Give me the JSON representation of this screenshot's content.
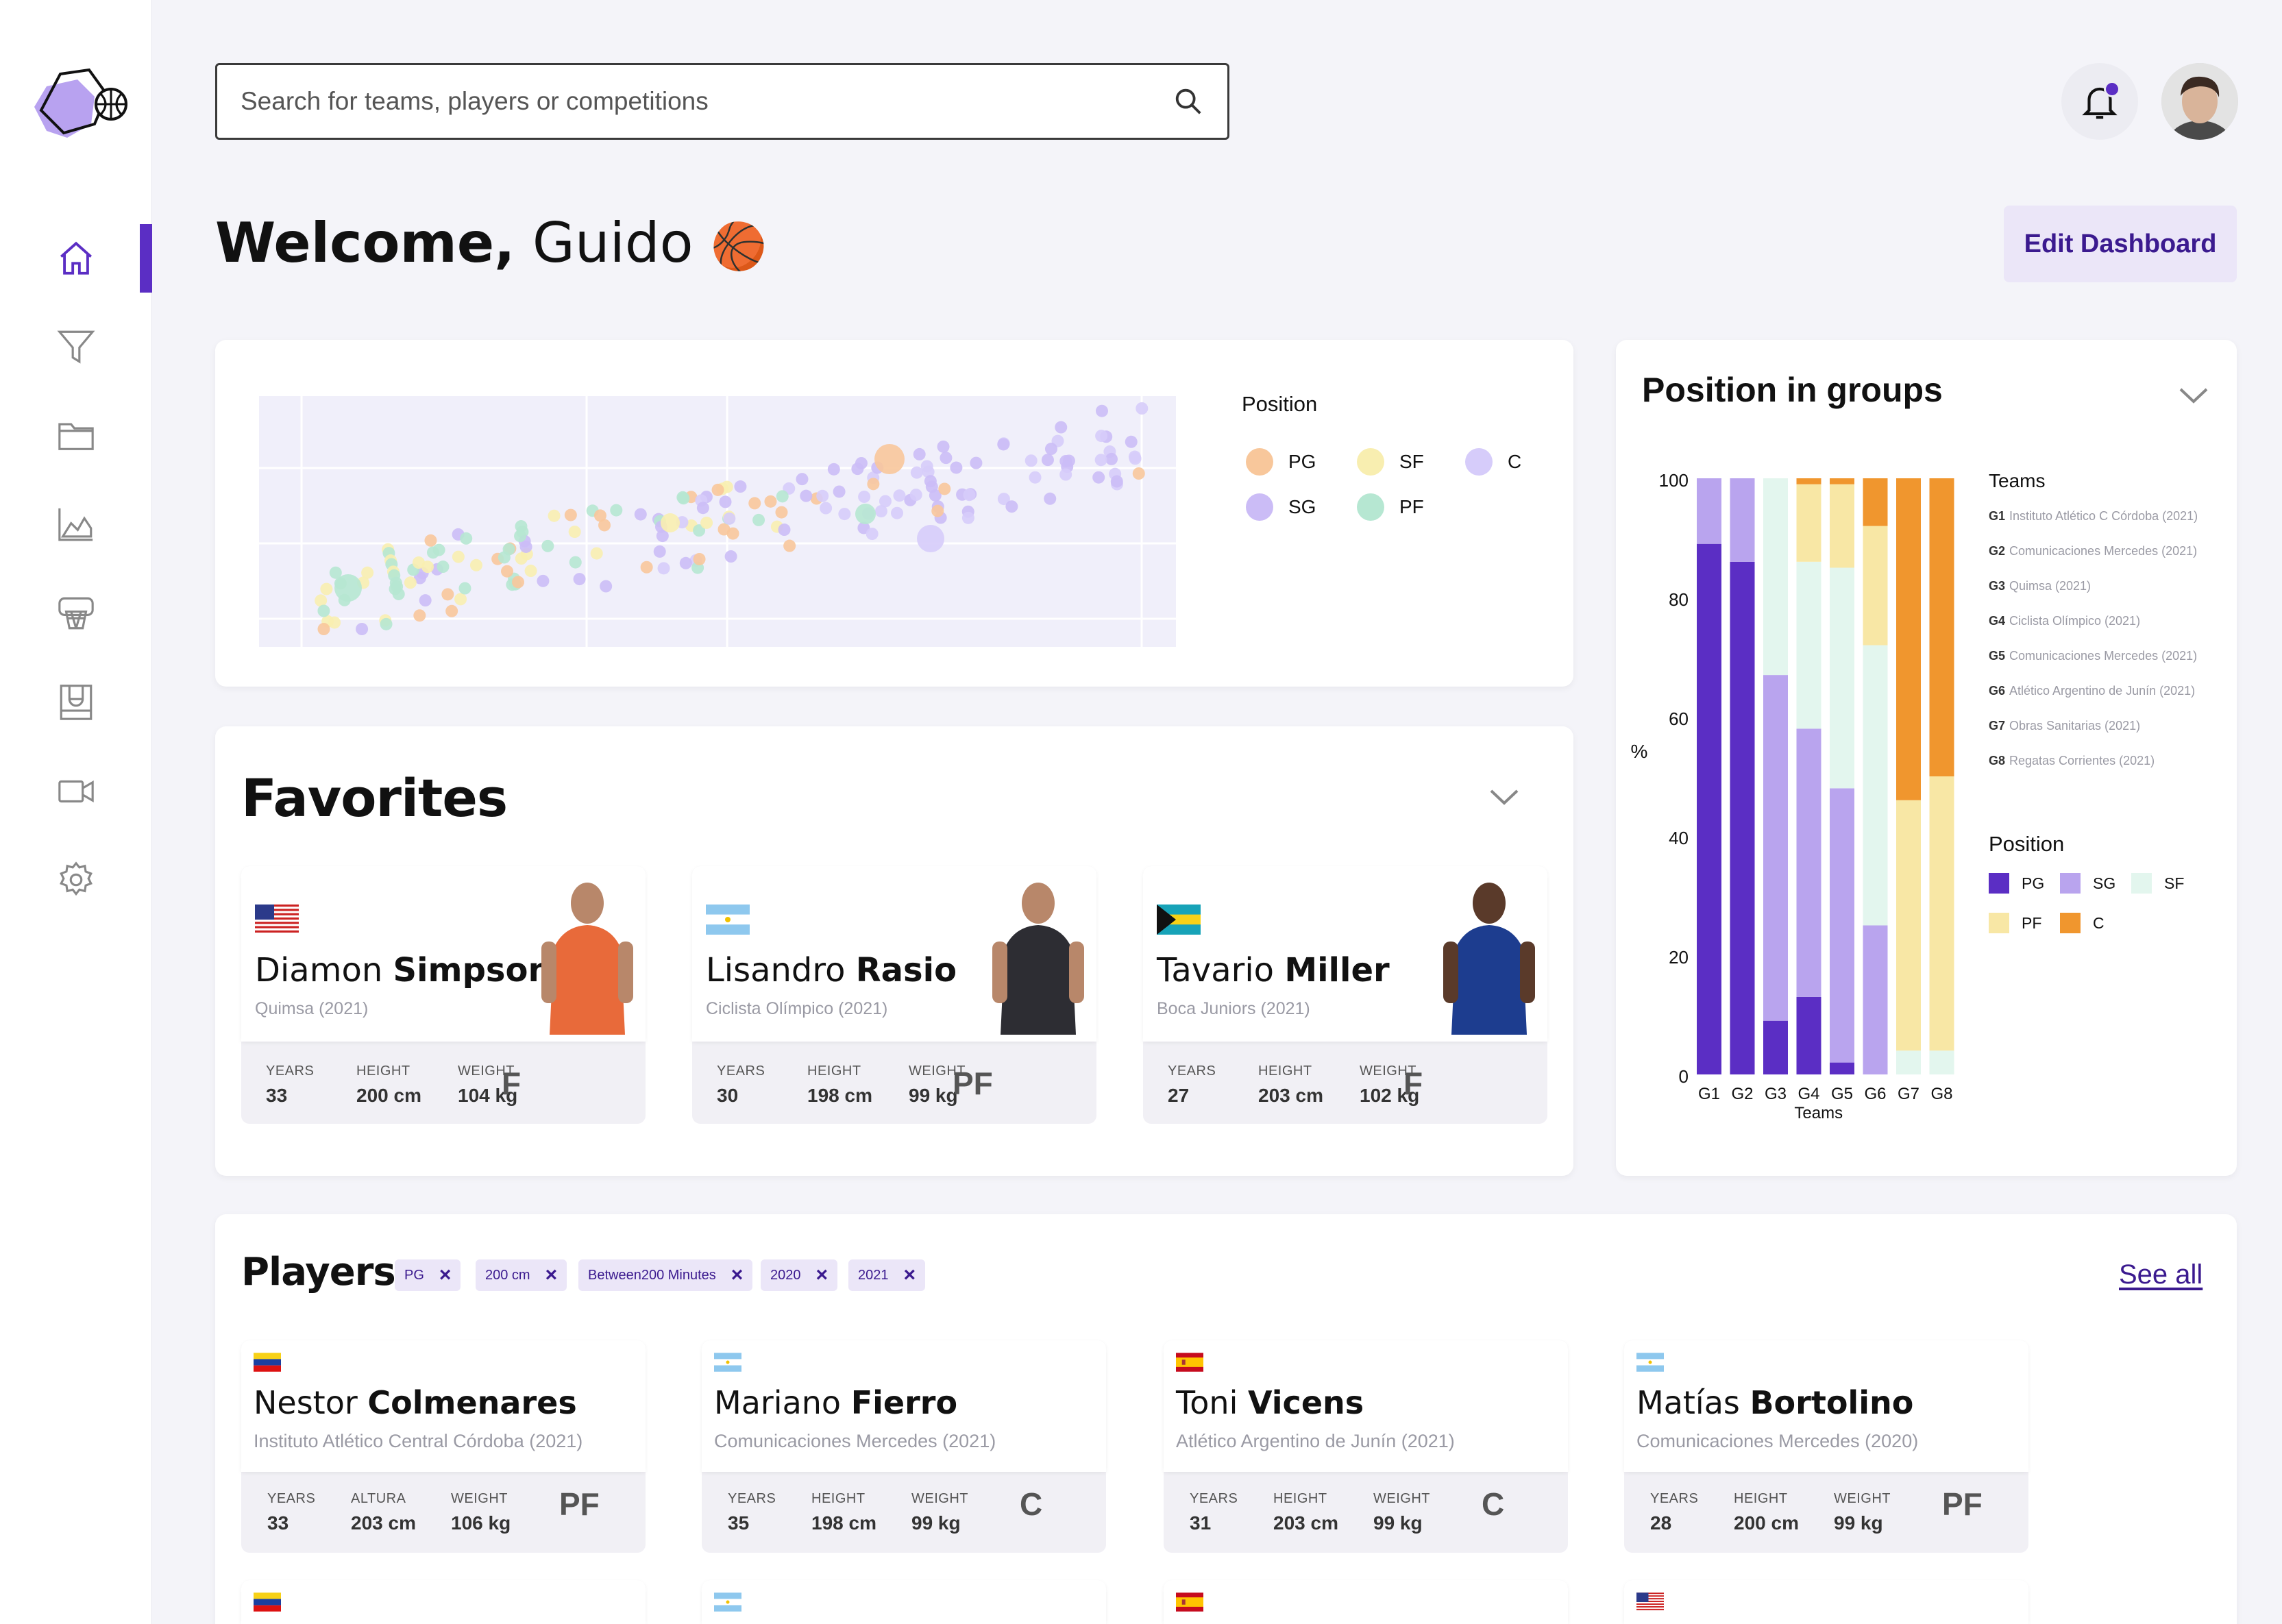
{
  "header": {
    "search_placeholder": "Search for teams, players or competitions",
    "welcome_prefix": "Welcome,",
    "user_name": "Guido",
    "welcome_emoji": "🏀",
    "edit_button": "Edit Dashboard"
  },
  "sidebar": {
    "items": [
      {
        "icon": "home-icon",
        "active": true
      },
      {
        "icon": "filter-icon",
        "active": false
      },
      {
        "icon": "folder-icon",
        "active": false
      },
      {
        "icon": "area-chart-icon",
        "active": false
      },
      {
        "icon": "basketball-hoop-icon",
        "active": false
      },
      {
        "icon": "court-icon",
        "active": false
      },
      {
        "icon": "video-camera-icon",
        "active": false
      },
      {
        "icon": "settings-gear-icon",
        "active": false
      }
    ]
  },
  "scatter": {
    "legend_title": "Position",
    "legend": [
      {
        "label": "PG",
        "color": "#f8c79b"
      },
      {
        "label": "SF",
        "color": "#f8eeb0"
      },
      {
        "label": "C",
        "color": "#d6ccfa"
      },
      {
        "label": "SG",
        "color": "#cbbcf6"
      },
      {
        "label": "PF",
        "color": "#b6e7d2"
      }
    ]
  },
  "favorites": {
    "title": "Favorites",
    "cards": [
      {
        "first": "Diamon",
        "last": "Simpson",
        "team": "Quimsa (2021)",
        "flag": "usa",
        "stats": [
          {
            "label": "YEARS",
            "value": "33"
          },
          {
            "label": "HEIGHT",
            "value": "200 cm"
          },
          {
            "label": "WEIGHT",
            "value": "104 kg"
          }
        ],
        "position": "F"
      },
      {
        "first": "Lisandro",
        "last": "Rasio",
        "team": "Ciclista Olímpico (2021)",
        "flag": "argentina",
        "stats": [
          {
            "label": "YEARS",
            "value": "30"
          },
          {
            "label": "HEIGHT",
            "value": "198 cm"
          },
          {
            "label": "WEIGHT",
            "value": "99 kg"
          }
        ],
        "position": "PF"
      },
      {
        "first": "Tavario",
        "last": "Miller",
        "team": "Boca Juniors (2021)",
        "flag": "bahamas",
        "stats": [
          {
            "label": "YEARS",
            "value": "27"
          },
          {
            "label": "HEIGHT",
            "value": "203 cm"
          },
          {
            "label": "WEIGHT",
            "value": "102 kg"
          }
        ],
        "position": "F"
      }
    ]
  },
  "players": {
    "title": "Players",
    "see_all": "See all",
    "chips": [
      "PG",
      "200 cm",
      "Between200 Minutes",
      "2020",
      "2021"
    ],
    "cards": [
      {
        "first": "Nestor",
        "last": "Colmenares",
        "team": "Instituto Atlético Central Córdoba (2021)",
        "flag": "venezuela",
        "stats": [
          {
            "label": "YEARS",
            "value": "33"
          },
          {
            "label": "ALTURA",
            "value": "203 cm"
          },
          {
            "label": "WEIGHT",
            "value": "106 kg"
          }
        ],
        "position": "PF"
      },
      {
        "first": "Mariano",
        "last": "Fierro",
        "team": "Comunicaciones Mercedes (2021)",
        "flag": "argentina",
        "stats": [
          {
            "label": "YEARS",
            "value": "35"
          },
          {
            "label": "HEIGHT",
            "value": "198 cm"
          },
          {
            "label": "WEIGHT",
            "value": "99 kg"
          }
        ],
        "position": "C"
      },
      {
        "first": "Toni",
        "last": "Vicens",
        "team": "Atlético Argentino de Junín (2021)",
        "flag": "spain",
        "stats": [
          {
            "label": "YEARS",
            "value": "31"
          },
          {
            "label": "HEIGHT",
            "value": "203 cm"
          },
          {
            "label": "WEIGHT",
            "value": "99 kg"
          }
        ],
        "position": "C"
      },
      {
        "first": "Matías",
        "last": "Bortolino",
        "team": "Comunicaciones Mercedes (2020)",
        "flag": "argentina",
        "stats": [
          {
            "label": "YEARS",
            "value": "28"
          },
          {
            "label": "HEIGHT",
            "value": "200 cm"
          },
          {
            "label": "WEIGHT",
            "value": "99 kg"
          }
        ],
        "position": "PF"
      }
    ],
    "more_row_flags": [
      "venezuela",
      "argentina",
      "spain",
      "usa"
    ]
  },
  "chart_data": {
    "type": "bar",
    "stacked": true,
    "title": "Position in groups",
    "xlabel": "Teams",
    "ylabel": "%",
    "ylim": [
      0,
      100
    ],
    "yticks": [
      0,
      20,
      40,
      60,
      80,
      100
    ],
    "categories": [
      "G1",
      "G2",
      "G3",
      "G4",
      "G5",
      "G6",
      "G7",
      "G8"
    ],
    "series": [
      {
        "name": "PG",
        "color": "#5b2ec4",
        "values": [
          89,
          86,
          9,
          13,
          2,
          0,
          0,
          0
        ]
      },
      {
        "name": "SG",
        "color": "#b9a4ee",
        "values": [
          11,
          14,
          58,
          45,
          46,
          25,
          0,
          0
        ]
      },
      {
        "name": "SF",
        "color": "#e3f6ee",
        "values": [
          0,
          0,
          33,
          28,
          37,
          47,
          4,
          4
        ]
      },
      {
        "name": "PF",
        "color": "#f8e7a5",
        "values": [
          0,
          0,
          0,
          13,
          14,
          20,
          42,
          46
        ]
      },
      {
        "name": "C",
        "color": "#f0962e",
        "values": [
          0,
          0,
          0,
          1,
          1,
          8,
          54,
          50
        ]
      }
    ],
    "legend_teams_title": "Teams",
    "teams": [
      {
        "code": "G1",
        "name": "Instituto Atlético C Córdoba (2021)"
      },
      {
        "code": "G2",
        "name": "Comunicaciones Mercedes (2021)"
      },
      {
        "code": "G3",
        "name": "Quimsa (2021)"
      },
      {
        "code": "G4",
        "name": "Ciclista Olímpico (2021)"
      },
      {
        "code": "G5",
        "name": "Comunicaciones Mercedes (2021)"
      },
      {
        "code": "G6",
        "name": "Atlético Argentino de Junín (2021)"
      },
      {
        "code": "G7",
        "name": "Obras Sanitarias (2021)"
      },
      {
        "code": "G8",
        "name": "Regatas Corrientes (2021)"
      }
    ],
    "legend_position_title": "Position"
  }
}
